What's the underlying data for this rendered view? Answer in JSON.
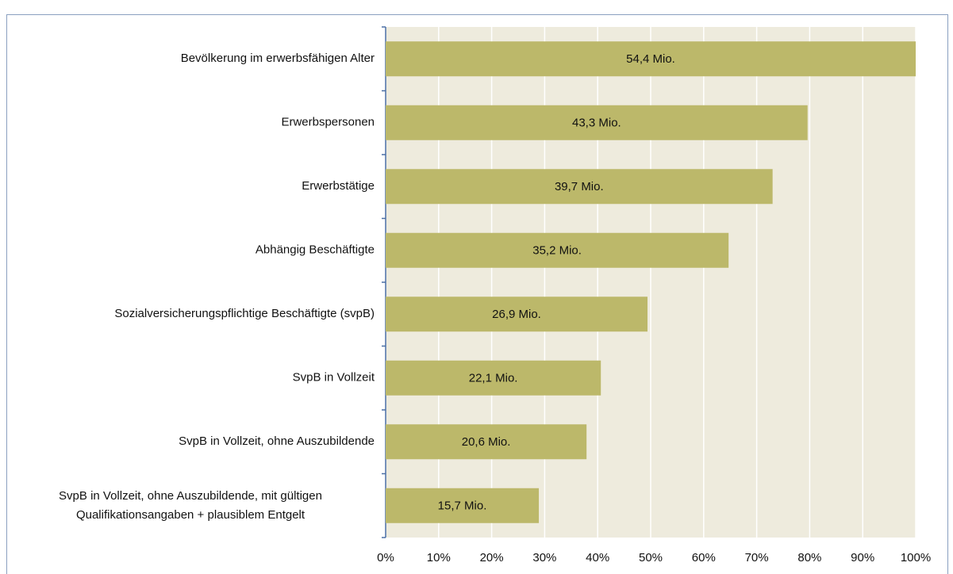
{
  "chart_data": {
    "type": "bar",
    "orientation": "horizontal",
    "categories": [
      "Bevölkerung im erwerbsfähigen Alter",
      "Erwerbspersonen",
      "Erwerbstätige",
      "Abhängig Beschäftigte",
      "Sozialversicherungspflichtige Beschäftigte (svpB)",
      "SvpB in Vollzeit",
      "SvpB in Vollzeit, ohne Auszubildende",
      "SvpB in Vollzeit, ohne Auszubildende, mit gültigen\nQualifikationsangaben + plausiblem Entgelt"
    ],
    "values": [
      100,
      79.6,
      73.0,
      64.7,
      49.4,
      40.6,
      37.9,
      28.9
    ],
    "value_labels": [
      "54,4 Mio.",
      "43,3 Mio.",
      "39,7 Mio.",
      "35,2 Mio.",
      "26,9 Mio.",
      "22,1 Mio.",
      "20,6 Mio.",
      "15,7 Mio."
    ],
    "color": "#bcb86a",
    "xlim": [
      0,
      100
    ],
    "xticks": [
      {
        "value": 0,
        "label": "0%"
      },
      {
        "value": 10,
        "label": "10%"
      },
      {
        "value": 20,
        "label": "20%"
      },
      {
        "value": 30,
        "label": "30%"
      },
      {
        "value": 40,
        "label": "40%"
      },
      {
        "value": 50,
        "label": "50%"
      },
      {
        "value": 60,
        "label": "60%"
      },
      {
        "value": 70,
        "label": "70%"
      },
      {
        "value": 80,
        "label": "80%"
      },
      {
        "value": 90,
        "label": "90%"
      },
      {
        "value": 100,
        "label": "100%"
      }
    ],
    "grid": true
  }
}
